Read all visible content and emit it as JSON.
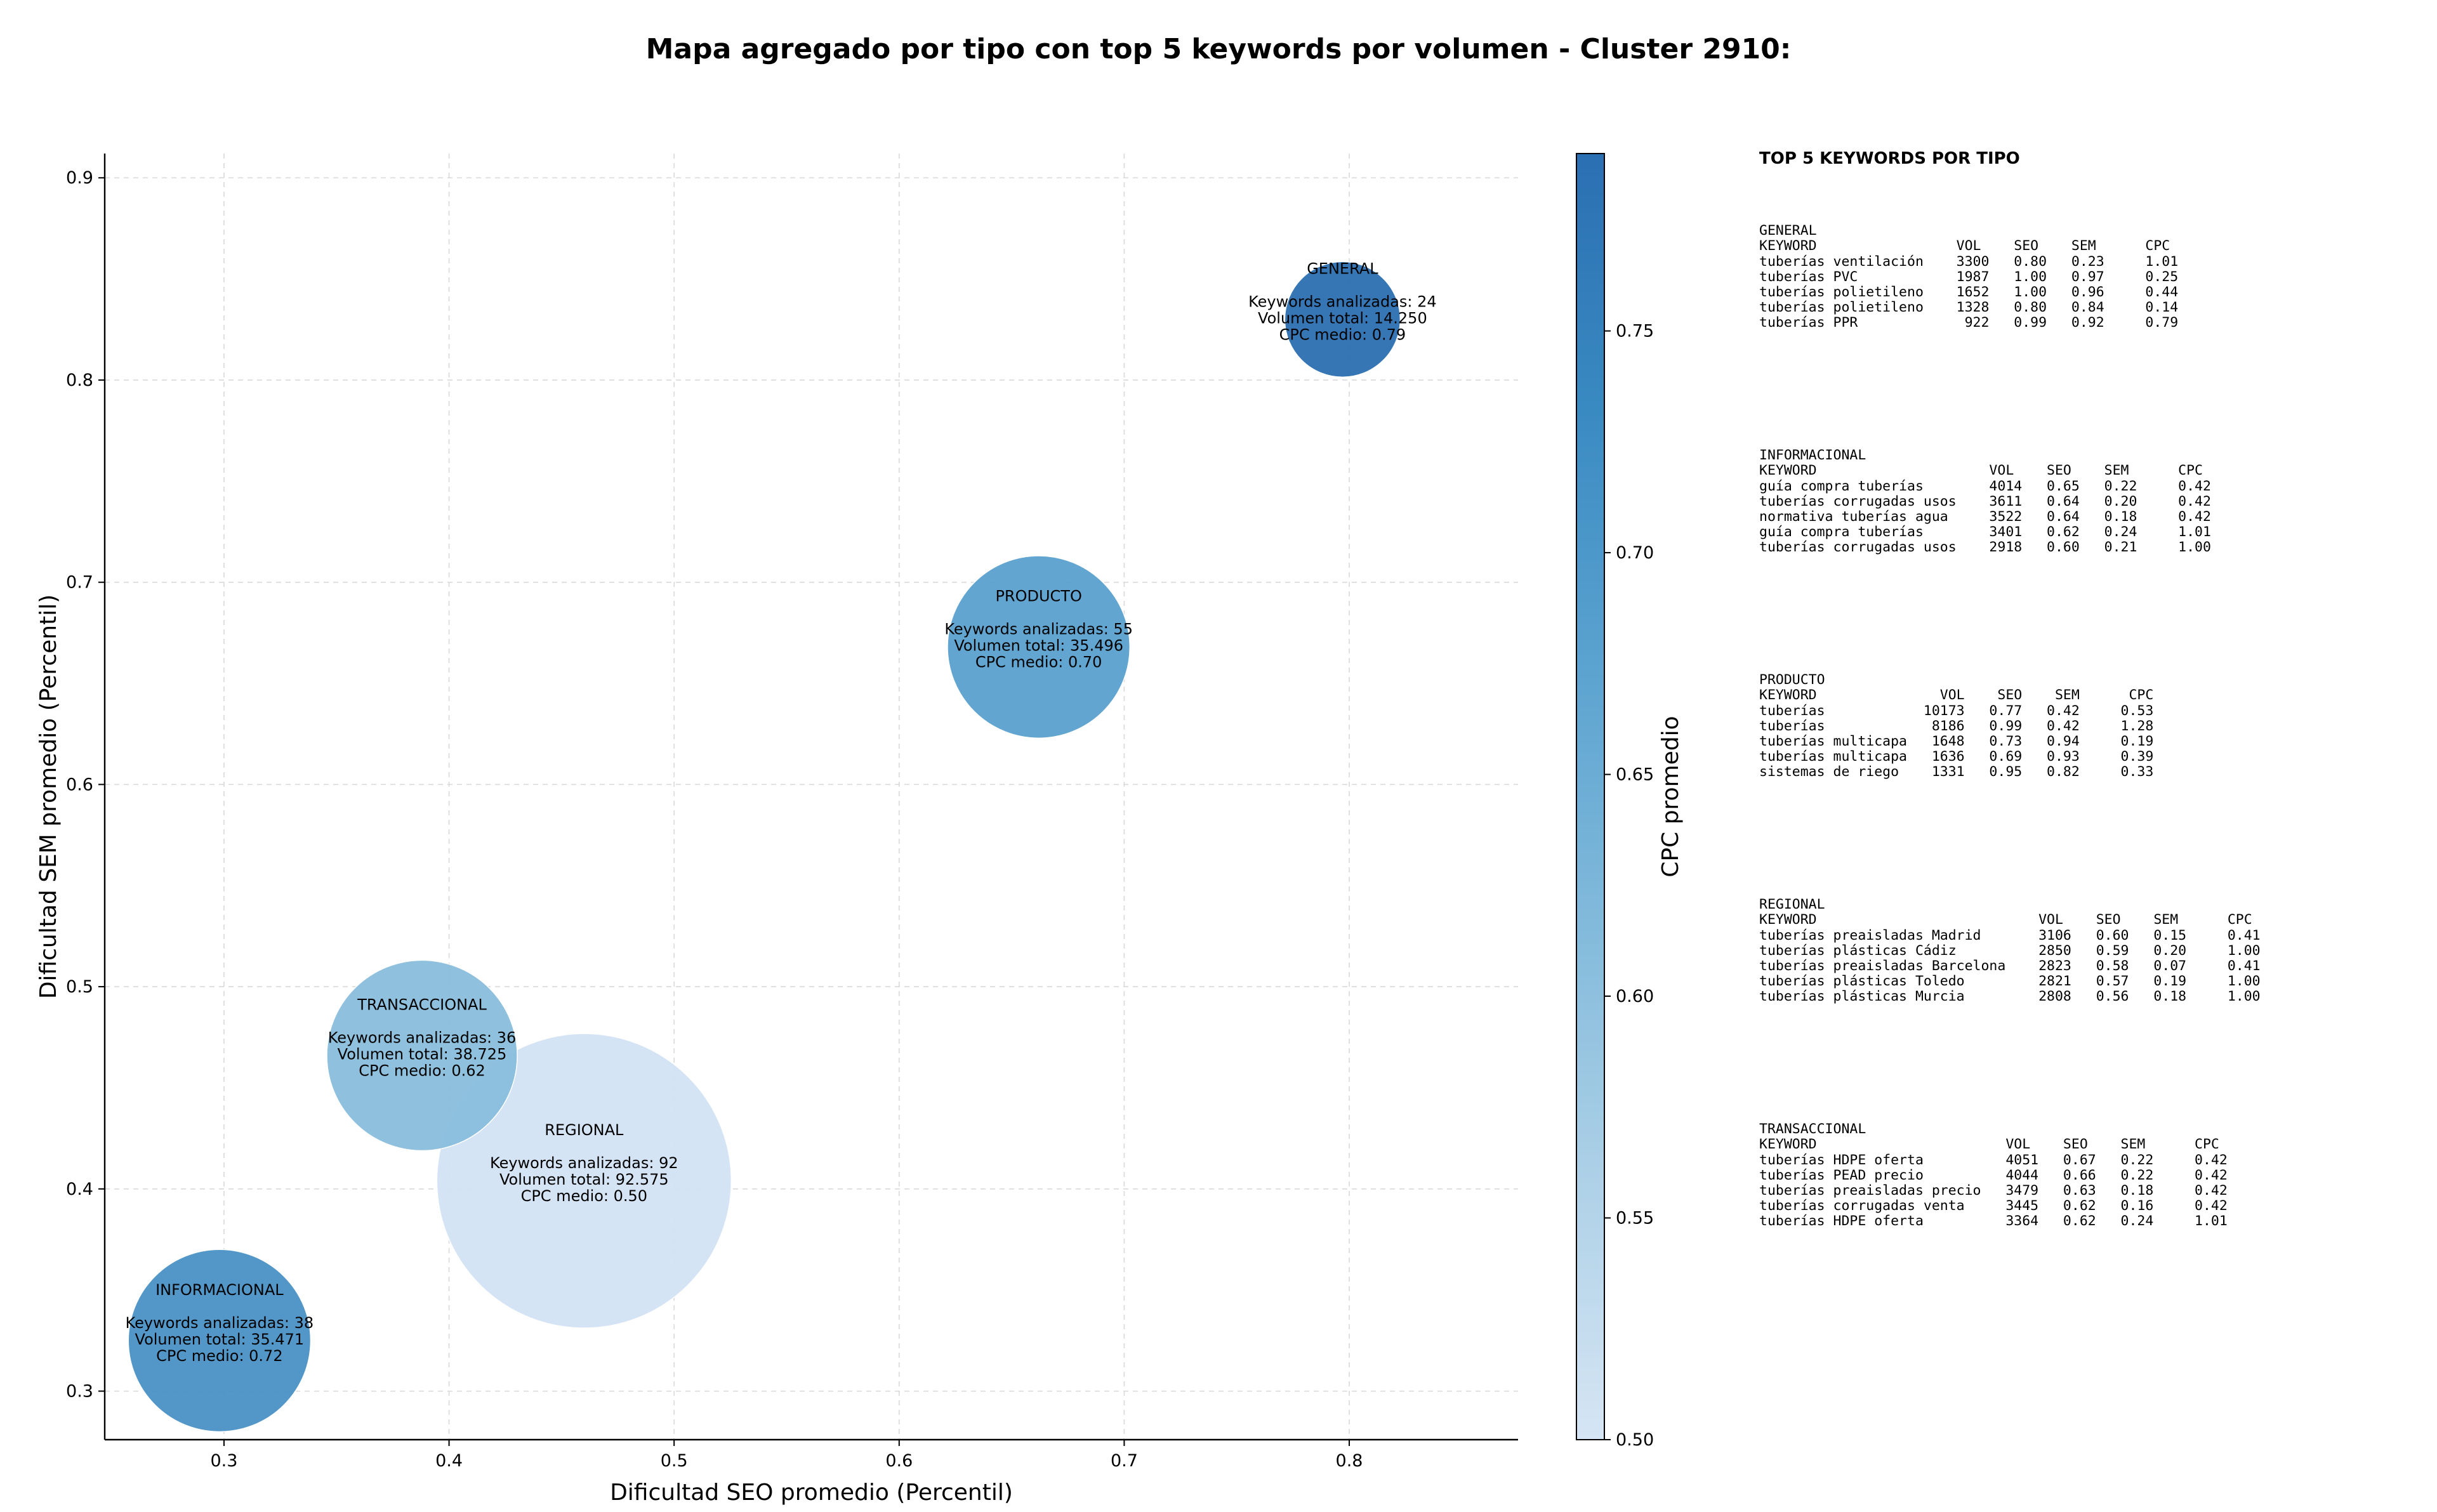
{
  "title": "Mapa agregado por tipo con top 5 keywords por volumen - Cluster 2910:",
  "chart_data": {
    "type": "scatter",
    "xlabel": "Dificultad SEO promedio (Percentil)",
    "ylabel": "Dificultad SEM promedio (Percentil)",
    "xlim": [
      0.247,
      0.875
    ],
    "ylim": [
      0.276,
      0.912
    ],
    "x_ticks": [
      "0.3",
      "0.4",
      "0.5",
      "0.6",
      "0.7",
      "0.8"
    ],
    "y_ticks": [
      "0.3",
      "0.4",
      "0.5",
      "0.6",
      "0.7",
      "0.8",
      "0.9"
    ],
    "grid": true,
    "colorbar": {
      "label": "CPC promedio",
      "range": [
        0.5,
        0.79
      ],
      "ticks": [
        "0.50",
        "0.55",
        "0.60",
        "0.65",
        "0.70",
        "0.75"
      ],
      "colors": [
        "#d6e5f4",
        "#aed1e7",
        "#82badb",
        "#5ba3d0",
        "#3a8ac2",
        "#2a6fb2"
      ]
    },
    "points": [
      {
        "name": "REGIONAL",
        "x": 0.46,
        "y": 0.404,
        "keywords_line": "Keywords analizadas: 92",
        "volume_line": "Volumen total: 92.575",
        "cpc_line": "CPC medio: 0.50",
        "keywords": 92,
        "volume": 92575,
        "cpc": 0.5,
        "color": "#d3e3f3"
      },
      {
        "name": "TRANSACCIONAL",
        "x": 0.388,
        "y": 0.466,
        "keywords_line": "Keywords analizadas: 36",
        "volume_line": "Volumen total: 38.725",
        "cpc_line": "CPC medio: 0.62",
        "keywords": 36,
        "volume": 38725,
        "cpc": 0.62,
        "color": "#89bedc"
      },
      {
        "name": "INFORMACIONAL",
        "x": 0.298,
        "y": 0.325,
        "keywords_line": "Keywords analizadas: 38",
        "volume_line": "Volumen total: 35.471",
        "cpc_line": "CPC medio: 0.72",
        "keywords": 38,
        "volume": 35471,
        "cpc": 0.72,
        "color": "#4a91c6"
      },
      {
        "name": "PRODUCTO",
        "x": 0.662,
        "y": 0.668,
        "keywords_line": "Keywords analizadas: 55",
        "volume_line": "Volumen total: 35.496",
        "cpc_line": "CPC medio: 0.70",
        "keywords": 55,
        "volume": 35496,
        "cpc": 0.7,
        "color": "#58a0ce"
      },
      {
        "name": "GENERAL",
        "x": 0.797,
        "y": 0.83,
        "keywords_line": "Keywords analizadas: 24",
        "volume_line": "Volumen total: 14.250",
        "cpc_line": "CPC medio: 0.79",
        "keywords": 24,
        "volume": 14250,
        "cpc": 0.79,
        "color": "#2b6fb1"
      }
    ]
  },
  "side_panel": {
    "title": "TOP 5 KEYWORDS POR TIPO",
    "blocks": [
      {
        "type": "GENERAL",
        "text": "GENERAL\nKEYWORD                 VOL    SEO    SEM      CPC\ntuberías ventilación    3300   0.80   0.23     1.01\ntuberías PVC            1987   1.00   0.97     0.25\ntuberías polietileno    1652   1.00   0.96     0.44\ntuberías polietileno    1328   0.80   0.84     0.14\ntuberías PPR             922   0.99   0.92     0.79"
      },
      {
        "type": "INFORMACIONAL",
        "text": "INFORMACIONAL\nKEYWORD                     VOL    SEO    SEM      CPC\nguía compra tuberías        4014   0.65   0.22     0.42\ntuberías corrugadas usos    3611   0.64   0.20     0.42\nnormativa tuberías agua     3522   0.64   0.18     0.42\nguía compra tuberías        3401   0.62   0.24     1.01\ntuberías corrugadas usos    2918   0.60   0.21     1.00"
      },
      {
        "type": "PRODUCTO",
        "text": "PRODUCTO\nKEYWORD               VOL    SEO    SEM      CPC\ntuberías            10173   0.77   0.42     0.53\ntuberías             8186   0.99   0.42     1.28\ntuberías multicapa   1648   0.73   0.94     0.19\ntuberías multicapa   1636   0.69   0.93     0.39\nsistemas de riego    1331   0.95   0.82     0.33"
      },
      {
        "type": "REGIONAL",
        "text": "REGIONAL\nKEYWORD                           VOL    SEO    SEM      CPC\ntuberías preaisladas Madrid       3106   0.60   0.15     0.41\ntuberías plásticas Cádiz          2850   0.59   0.20     1.00\ntuberías preaisladas Barcelona    2823   0.58   0.07     0.41\ntuberías plásticas Toledo         2821   0.57   0.19     1.00\ntuberías plásticas Murcia         2808   0.56   0.18     1.00"
      },
      {
        "type": "TRANSACCIONAL",
        "text": "TRANSACCIONAL\nKEYWORD                       VOL    SEO    SEM      CPC\ntuberías HDPE oferta          4051   0.67   0.22     0.42\ntuberías PEAD precio          4044   0.66   0.22     0.42\ntuberías preaisladas precio   3479   0.63   0.18     0.42\ntuberías corrugadas venta     3445   0.62   0.16     0.42\ntuberías HDPE oferta          3364   0.62   0.24     1.01"
      }
    ]
  }
}
